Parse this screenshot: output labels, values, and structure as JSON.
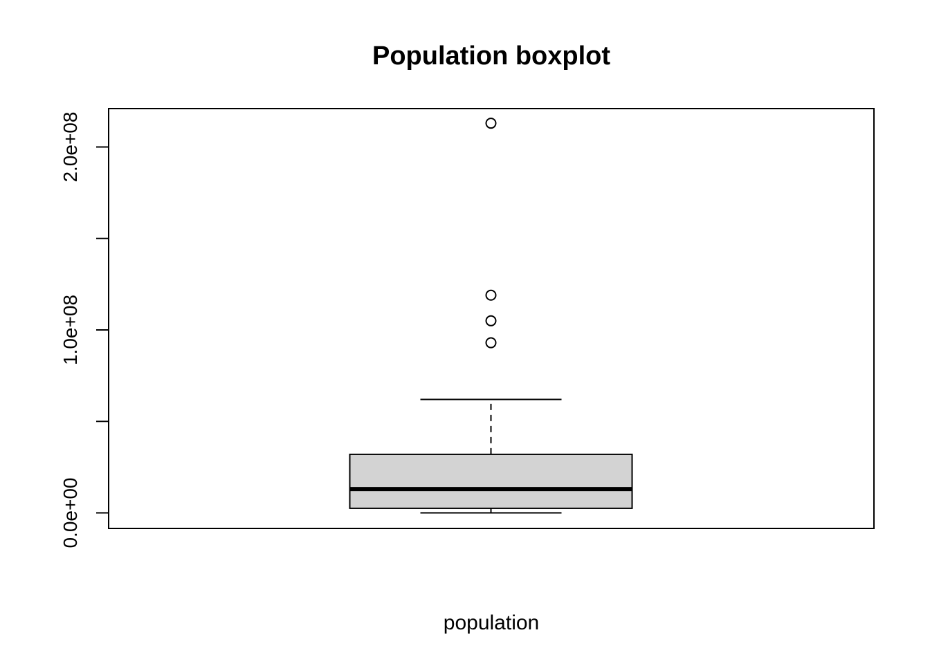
{
  "chart_data": {
    "type": "boxplot",
    "title": "Population boxplot",
    "xlabel": "population",
    "ylabel": "",
    "ylim": [
      -8500000,
      221000000
    ],
    "yticks": [
      0,
      50000000,
      100000000,
      150000000,
      200000000
    ],
    "ytick_labels": [
      "0.0e+00",
      "",
      "1.0e+08",
      "",
      "2.0e+08"
    ],
    "grid": false,
    "box_fill": "#d3d3d3",
    "series": [
      {
        "whisker_low": 0,
        "q1": 2500000,
        "median": 13000000,
        "q3": 32000000,
        "whisker_high": 62000000,
        "outliers": [
          93000000,
          105000000,
          119000000,
          213000000
        ]
      }
    ]
  }
}
